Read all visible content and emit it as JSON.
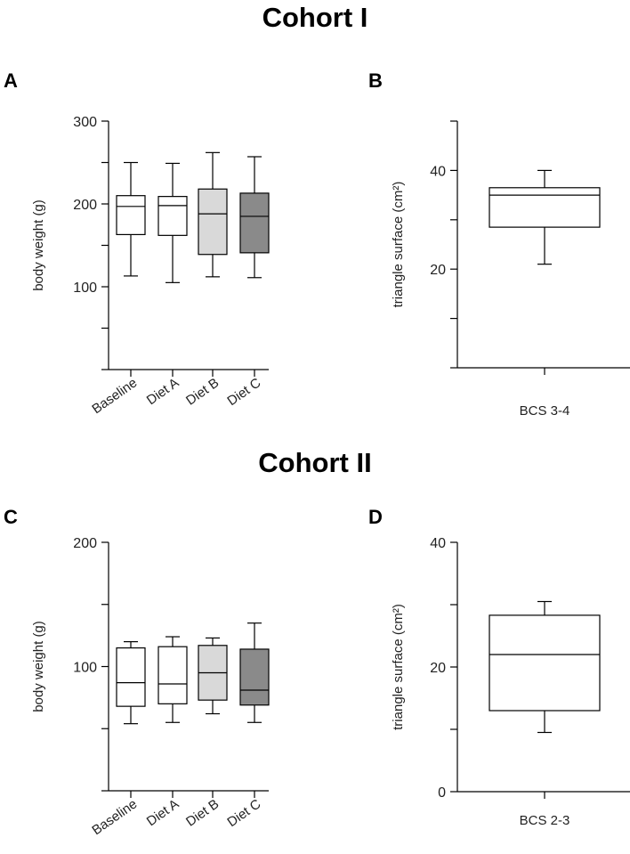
{
  "titles": {
    "cohort1": "Cohort I",
    "cohort2": "Cohort II"
  },
  "panels": {
    "a": "A",
    "b": "B",
    "c": "C",
    "d": "D"
  },
  "chart_data": [
    {
      "id": "A",
      "type": "box",
      "ylabel": "body weight (g)",
      "ylim": [
        0,
        300
      ],
      "yticks": [
        100,
        200,
        300
      ],
      "categories": [
        "Baseline",
        "Diet A",
        "Diet B",
        "Diet C"
      ],
      "fills": [
        "#ffffff",
        "#ffffff",
        "#d9d9d9",
        "#8a8a8a"
      ],
      "boxes": [
        {
          "min": 113,
          "q1": 163,
          "median": 197,
          "q3": 210,
          "max": 250
        },
        {
          "min": 105,
          "q1": 162,
          "median": 198,
          "q3": 209,
          "max": 249
        },
        {
          "min": 112,
          "q1": 139,
          "median": 188,
          "q3": 218,
          "max": 262
        },
        {
          "min": 111,
          "q1": 141,
          "median": 185,
          "q3": 213,
          "max": 257
        }
      ]
    },
    {
      "id": "B",
      "type": "box",
      "ylabel": "triangle surface (cm²)",
      "ylim": [
        0,
        50
      ],
      "yticks": [
        20,
        40
      ],
      "categories": [
        "BCS 3-4"
      ],
      "fills": [
        "#ffffff"
      ],
      "boxes": [
        {
          "min": 21,
          "q1": 28.5,
          "median": 35,
          "q3": 36.5,
          "max": 40
        }
      ]
    },
    {
      "id": "C",
      "type": "box",
      "ylabel": "body weight (g)",
      "ylim": [
        0,
        200
      ],
      "yticks": [
        100,
        200
      ],
      "categories": [
        "Baseline",
        "Diet A",
        "Diet B",
        "Diet C"
      ],
      "fills": [
        "#ffffff",
        "#ffffff",
        "#d9d9d9",
        "#8a8a8a"
      ],
      "boxes": [
        {
          "min": 54,
          "q1": 68,
          "median": 87,
          "q3": 115,
          "max": 120
        },
        {
          "min": 55,
          "q1": 70,
          "median": 86,
          "q3": 116,
          "max": 124
        },
        {
          "min": 62,
          "q1": 73,
          "median": 95,
          "q3": 117,
          "max": 123
        },
        {
          "min": 55,
          "q1": 69,
          "median": 81,
          "q3": 114,
          "max": 135
        }
      ]
    },
    {
      "id": "D",
      "type": "box",
      "ylabel": "triangle surface (cm²)",
      "ylim": [
        0,
        40
      ],
      "yticks": [
        0,
        20,
        40
      ],
      "categories": [
        "BCS 2-3"
      ],
      "fills": [
        "#ffffff"
      ],
      "boxes": [
        {
          "min": 9.5,
          "q1": 13,
          "median": 22,
          "q3": 28.3,
          "max": 30.5
        }
      ]
    }
  ]
}
